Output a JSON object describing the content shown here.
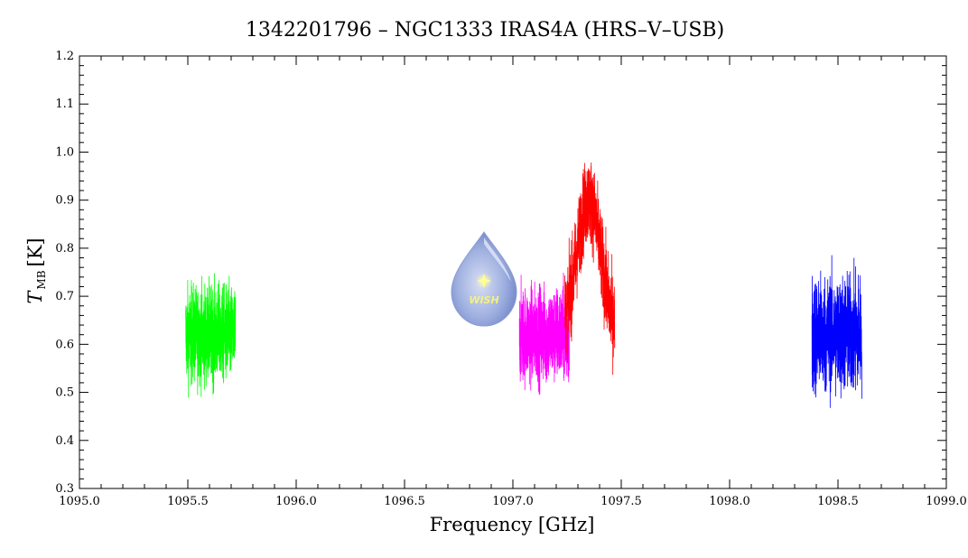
{
  "chart_data": {
    "type": "line",
    "title": "1342201796 – NGC1333 IRAS4A (HRS–V–USB)",
    "xlabel": "Frequency [GHz]",
    "ylabel_main": "T",
    "ylabel_sub": "MB",
    "ylabel_unit": "[K]",
    "xlim": [
      1095.0,
      1099.0
    ],
    "ylim": [
      0.3,
      1.2
    ],
    "xticks": [
      "1095.0",
      "1095.5",
      "1096.0",
      "1096.5",
      "1097.0",
      "1097.5",
      "1098.0",
      "1098.5",
      "1099.0"
    ],
    "yticks": [
      "0.3",
      "0.4",
      "0.5",
      "0.6",
      "0.7",
      "0.8",
      "0.9",
      "1.0",
      "1.1",
      "1.2"
    ],
    "series": [
      {
        "color": "#00ff00",
        "x_range": [
          1095.49,
          1095.72
        ],
        "mean": 0.62,
        "noise": 0.09,
        "peak": 0.0,
        "peak_center": 0,
        "peak_width": 0.1
      },
      {
        "color": "#ff00ff",
        "x_range": [
          1097.03,
          1097.26
        ],
        "mean": 0.62,
        "noise": 0.09,
        "peak": 0.0,
        "peak_center": 0,
        "peak_width": 0.1
      },
      {
        "color": "#ff0000",
        "x_range": [
          1097.24,
          1097.47
        ],
        "mean": 0.62,
        "noise": 0.08,
        "peak": 0.28,
        "peak_center": 1097.35,
        "peak_width": 0.055
      },
      {
        "color": "#0000ff",
        "x_range": [
          1098.38,
          1098.61
        ],
        "mean": 0.62,
        "noise": 0.11,
        "peak": 0.0,
        "peak_center": 0,
        "peak_width": 0.1
      }
    ]
  },
  "logo": {
    "text": "WISH",
    "icon": "water-drop-star-icon"
  }
}
